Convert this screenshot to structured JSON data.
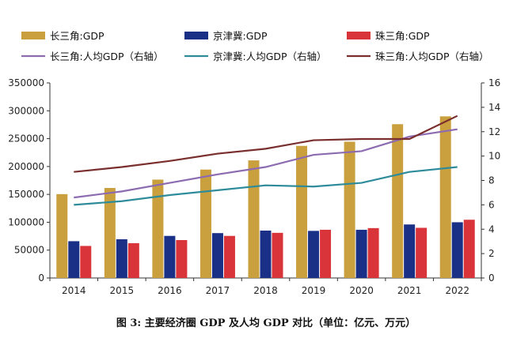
{
  "caption": "图 3: 主要经济圈 GDP 及人均 GDP 对比（单位：亿元、万元）",
  "chart_data": {
    "type": "bar",
    "categories": [
      "2014",
      "2015",
      "2016",
      "2017",
      "2018",
      "2019",
      "2020",
      "2021",
      "2022"
    ],
    "title": "",
    "xlabel": "",
    "ylabel": "",
    "ylim": [
      0,
      350000
    ],
    "y2lim": [
      0,
      16
    ],
    "yticks": [
      0,
      50000,
      100000,
      150000,
      200000,
      250000,
      300000,
      350000
    ],
    "y2ticks": [
      0,
      2,
      4,
      6,
      8,
      10,
      12,
      14,
      16
    ],
    "grid": false,
    "legend_position": "top",
    "series": [
      {
        "name": "长三角:GDP",
        "kind": "bar",
        "axis": "left",
        "color": "#C9A03D",
        "values": [
          150500,
          161500,
          176500,
          194500,
          211000,
          237000,
          244500,
          276000,
          290000
        ]
      },
      {
        "name": "京津冀:GDP",
        "kind": "bar",
        "axis": "left",
        "color": "#1A2F86",
        "values": [
          66000,
          69500,
          75500,
          80500,
          85000,
          84500,
          86500,
          96000,
          100000
        ]
      },
      {
        "name": "珠三角:GDP",
        "kind": "bar",
        "axis": "left",
        "color": "#D9343A",
        "values": [
          57500,
          62500,
          68000,
          75500,
          81000,
          86500,
          89500,
          90000,
          104500
        ]
      },
      {
        "name": "长三角:人均GDP（右轴）",
        "kind": "line",
        "axis": "right",
        "color": "#8C6BB1",
        "values": [
          6.6,
          7.1,
          7.8,
          8.5,
          9.1,
          10.1,
          10.4,
          11.6,
          12.2
        ]
      },
      {
        "name": "京津冀:人均GDP（右轴）",
        "kind": "line",
        "axis": "right",
        "color": "#2E8B9A",
        "values": [
          6.0,
          6.3,
          6.8,
          7.2,
          7.6,
          7.5,
          7.8,
          8.7,
          9.1
        ]
      },
      {
        "name": "珠三角:人均GDP（右轴）",
        "kind": "line",
        "axis": "right",
        "color": "#7A2E2E",
        "values": [
          8.7,
          9.1,
          9.6,
          10.2,
          10.6,
          11.3,
          11.4,
          11.4,
          13.3
        ]
      }
    ]
  }
}
